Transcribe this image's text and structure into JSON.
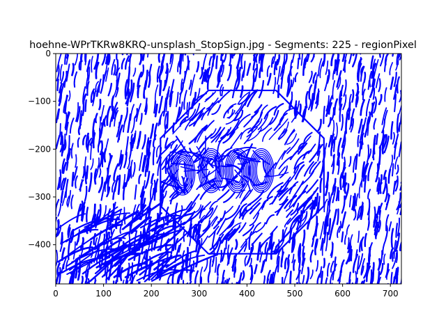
{
  "chart_data": {
    "type": "line",
    "title": "hoehne-WPrTKRw8KRQ-unsplash_StopSign.jpg - Segments: 225 - regionPixel",
    "xlabel": "",
    "ylabel": "",
    "xlim": [
      0,
      723
    ],
    "ylim": [
      -482,
      0
    ],
    "x_ticks": [
      0,
      100,
      200,
      300,
      400,
      500,
      600,
      700
    ],
    "y_ticks": [
      0,
      -100,
      -200,
      -300,
      -400
    ],
    "x_tick_labels": [
      "0",
      "100",
      "200",
      "300",
      "400",
      "500",
      "600",
      "700"
    ],
    "y_tick_labels": [
      "0",
      "−100",
      "−200",
      "−300",
      "−400"
    ],
    "series_count": 225,
    "series_color": "#0000ff",
    "grid": false,
    "legend": "none",
    "stop_sign": {
      "center": [
        390,
        -248
      ],
      "radius": 185,
      "letters": [
        "S",
        "T",
        "O",
        "P"
      ],
      "letter_centers": [
        [
          265,
          -250
        ],
        [
          325,
          -245
        ],
        [
          380,
          -245
        ],
        [
          430,
          -245
        ]
      ]
    }
  }
}
